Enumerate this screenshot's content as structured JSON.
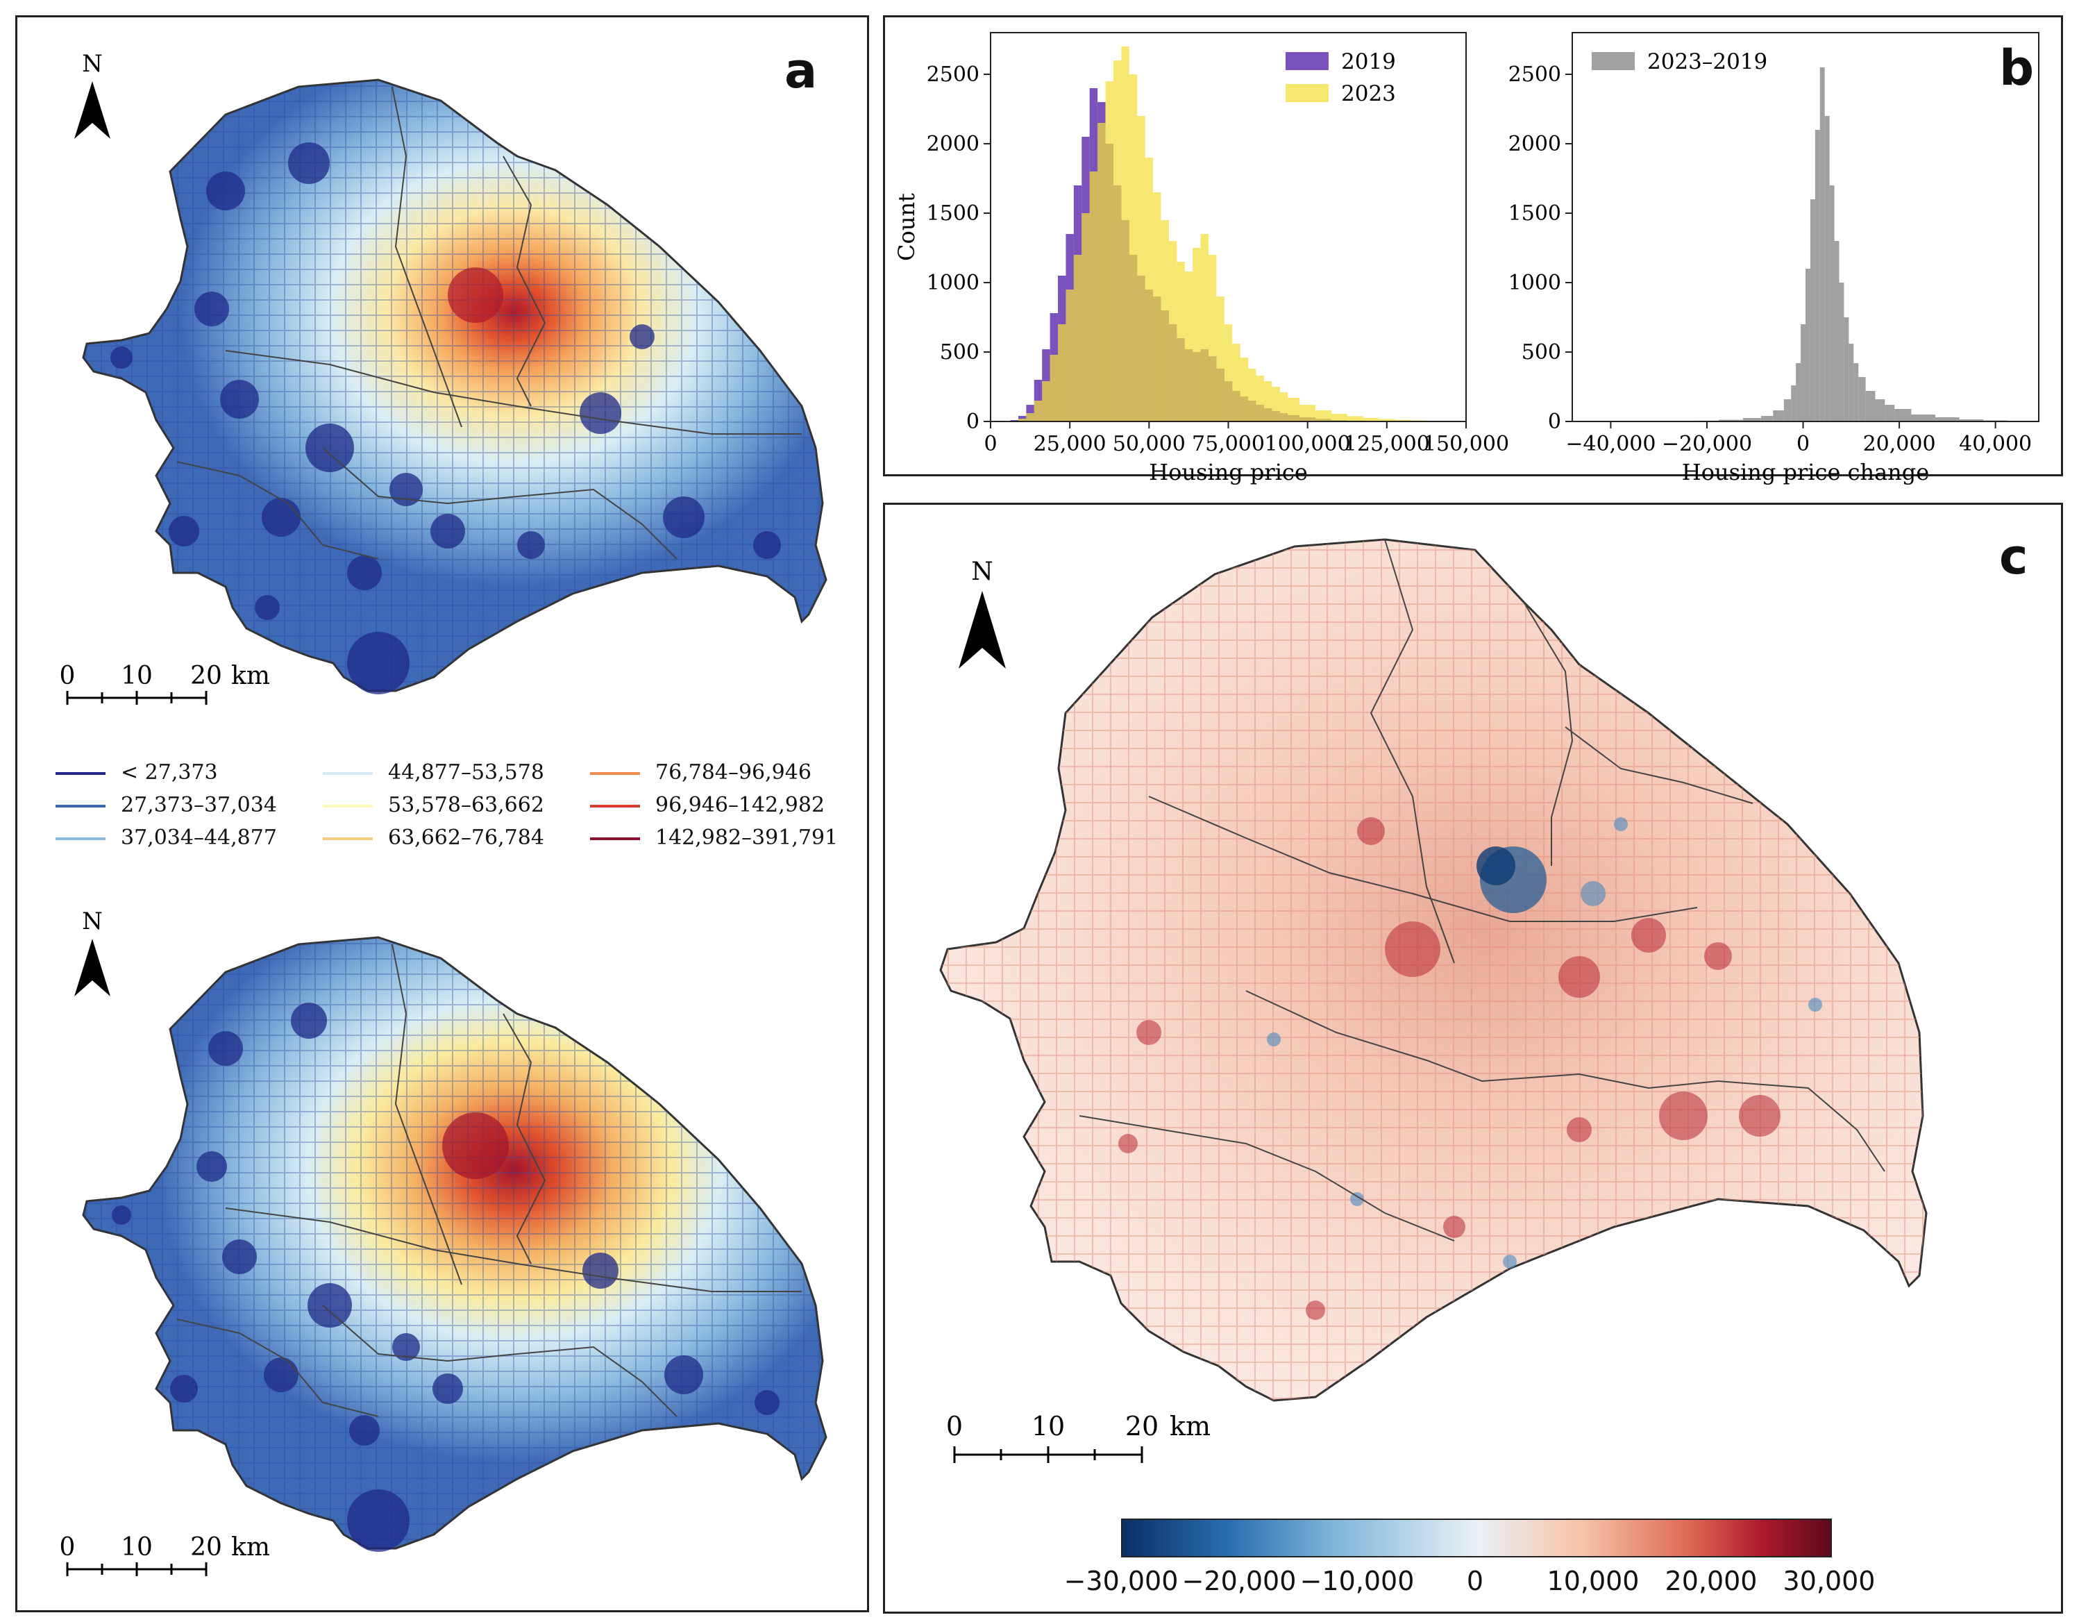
{
  "panels": {
    "a": {
      "label": "a",
      "north": "N",
      "scalebar": {
        "ticks": [
          "0",
          "10",
          "20"
        ],
        "unit": "km"
      },
      "legend": [
        {
          "label": "< 27,373",
          "color": "#22288c"
        },
        {
          "label": "27,373–37,034",
          "color": "#3d69b6"
        },
        {
          "label": "37,034–44,877",
          "color": "#8ab9de"
        },
        {
          "label": "44,877–53,578",
          "color": "#d5ebf3"
        },
        {
          "label": "53,578–63,662",
          "color": "#fdf7b8"
        },
        {
          "label": "63,662–76,784",
          "color": "#f6cd7c"
        },
        {
          "label": "76,784–96,946",
          "color": "#f08a4c"
        },
        {
          "label": "96,946–142,982",
          "color": "#d63a2a"
        },
        {
          "label": "142,982–391,791",
          "color": "#8b0f2e"
        }
      ]
    },
    "b": {
      "label": "b"
    },
    "c": {
      "label": "c",
      "north": "N",
      "scalebar": {
        "ticks": [
          "0",
          "10",
          "20"
        ],
        "unit": "km"
      },
      "colorbar": {
        "ticks": [
          "−30,000",
          "−20,000",
          "−10,000",
          "0",
          "10,000",
          "20,000",
          "30,000"
        ],
        "range": [
          -30000,
          30000
        ]
      }
    }
  },
  "chart_data": [
    {
      "type": "bar",
      "subtype": "histogram",
      "xlabel": "Housing price",
      "ylabel": "Count",
      "xlim": [
        0,
        150000
      ],
      "ylim": [
        0,
        2800
      ],
      "xticks": [
        "0",
        "25,000",
        "50,000",
        "75,000",
        "100,000",
        "125,000",
        "150,000"
      ],
      "yticks": [
        "0",
        "500",
        "1000",
        "1500",
        "2000",
        "2500"
      ],
      "legend": "top-right",
      "bin_width": 1500,
      "series": [
        {
          "name": "2019",
          "color": "#6a3fb5",
          "x": [
            7500,
            10000,
            12500,
            15000,
            17500,
            20000,
            22500,
            25000,
            27500,
            30000,
            32500,
            35000,
            37500,
            40000,
            42500,
            45000,
            47500,
            50000,
            52500,
            55000,
            57500,
            60000,
            62500,
            65000,
            67500,
            70000,
            72500,
            75000,
            77500,
            80000,
            82500,
            85000,
            87500,
            90000,
            92500,
            95000,
            100000,
            105000,
            110000,
            115000,
            120000
          ],
          "values": [
            10,
            40,
            120,
            300,
            520,
            780,
            1050,
            1350,
            1700,
            2050,
            2400,
            2300,
            2000,
            1700,
            1450,
            1200,
            1050,
            950,
            900,
            800,
            700,
            600,
            520,
            500,
            520,
            470,
            380,
            290,
            220,
            180,
            150,
            120,
            95,
            75,
            60,
            45,
            30,
            18,
            10,
            6,
            3
          ]
        },
        {
          "name": "2023",
          "color": "#f2de3a",
          "x": [
            7500,
            10000,
            12500,
            15000,
            17500,
            20000,
            22500,
            25000,
            27500,
            30000,
            32500,
            35000,
            37500,
            40000,
            42500,
            45000,
            47500,
            50000,
            52500,
            55000,
            57500,
            60000,
            62500,
            65000,
            67500,
            70000,
            72500,
            75000,
            77500,
            80000,
            82500,
            85000,
            87500,
            90000,
            92500,
            95000,
            100000,
            105000,
            110000,
            115000,
            120000,
            125000,
            130000,
            135000,
            140000,
            145000
          ],
          "values": [
            5,
            20,
            60,
            150,
            290,
            480,
            700,
            950,
            1200,
            1500,
            1800,
            2150,
            2450,
            2600,
            2700,
            2500,
            2200,
            1900,
            1650,
            1450,
            1300,
            1150,
            1080,
            1250,
            1350,
            1200,
            900,
            700,
            560,
            460,
            380,
            330,
            290,
            250,
            210,
            170,
            120,
            80,
            55,
            38,
            26,
            18,
            12,
            8,
            5,
            3
          ]
        }
      ]
    },
    {
      "type": "bar",
      "subtype": "histogram",
      "xlabel": "Housing price change",
      "ylabel": "",
      "xlim": [
        -48000,
        49000
      ],
      "ylim": [
        0,
        2800
      ],
      "xticks": [
        "−40,000",
        "−20,000",
        "0",
        "20,000",
        "40,000"
      ],
      "yticks": [
        "0",
        "500",
        "1000",
        "1500",
        "2000",
        "2500"
      ],
      "legend": "top-left",
      "series": [
        {
          "name": "2023–2019",
          "color": "#a0a0a0",
          "x": [
            -20000,
            -15000,
            -10000,
            -7500,
            -5000,
            -3000,
            -2000,
            -1000,
            0,
            1000,
            2000,
            3000,
            4000,
            5000,
            6000,
            7000,
            8000,
            9000,
            10000,
            11000,
            12000,
            14000,
            16000,
            18000,
            20000,
            25000,
            30000,
            35000,
            40000
          ],
          "values": [
            6,
            12,
            25,
            40,
            80,
            160,
            260,
            420,
            700,
            1100,
            1600,
            2100,
            2550,
            2200,
            1700,
            1300,
            1000,
            750,
            560,
            420,
            320,
            220,
            160,
            120,
            90,
            50,
            30,
            15,
            8
          ]
        }
      ]
    }
  ]
}
